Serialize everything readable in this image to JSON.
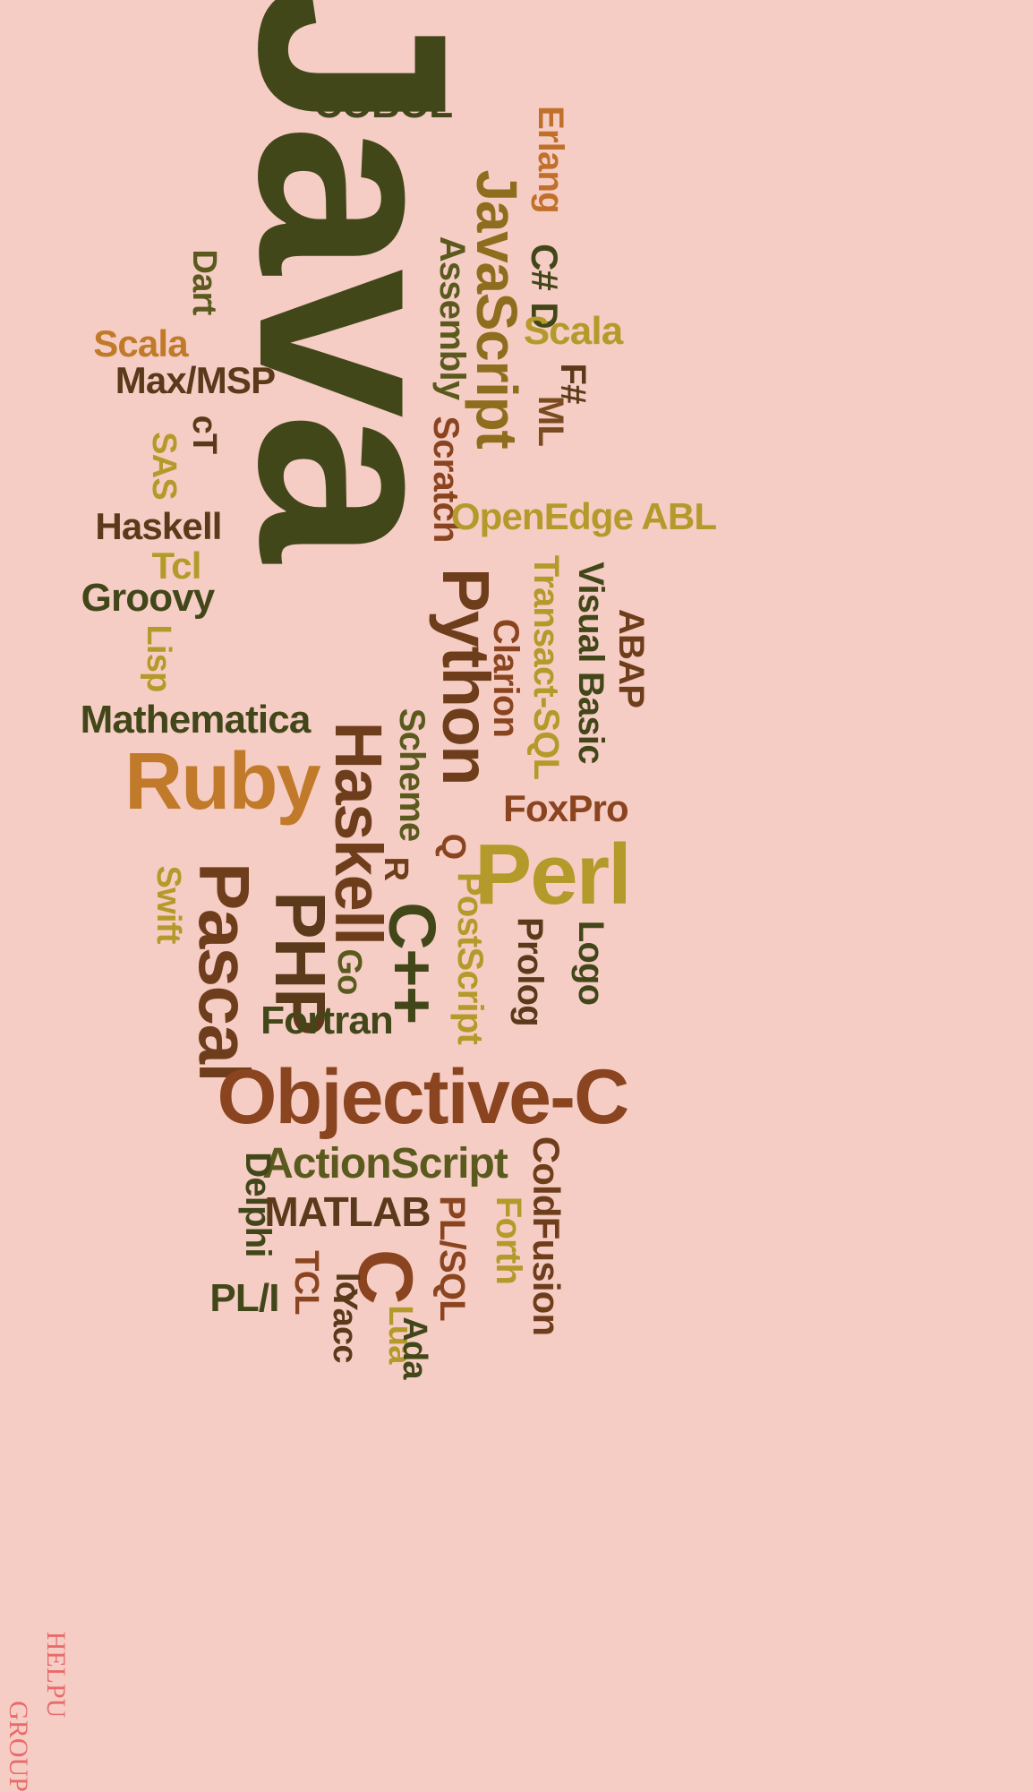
{
  "palette": {
    "background": "#f6cdc4",
    "olive_dark": "#424719",
    "olive": "#5a5a1e",
    "brown": "#6e3e1c",
    "rust": "#8a4520",
    "ochre": "#c07a2a",
    "mustard": "#b49a2a",
    "watermark": "#e86a6a"
  },
  "words": [
    {
      "text": "Java",
      "size": 300,
      "rot": 90,
      "color": "#424719"
    },
    {
      "text": "COBOL",
      "size": 44,
      "rot": 0,
      "color": "#424719"
    },
    {
      "text": "JavaScript",
      "size": 64,
      "rot": 90,
      "color": "#8f6d1e"
    },
    {
      "text": "Erlang",
      "size": 40,
      "rot": 90,
      "color": "#c0702a"
    },
    {
      "text": "C#",
      "size": 42,
      "rot": 90,
      "color": "#424719"
    },
    {
      "text": "D",
      "size": 42,
      "rot": 90,
      "color": "#424719"
    },
    {
      "text": "Scala",
      "size": 44,
      "rot": 0,
      "color": "#b49a2a"
    },
    {
      "text": "F#",
      "size": 40,
      "rot": 90,
      "color": "#5a3a1a"
    },
    {
      "text": "ML",
      "size": 40,
      "rot": 90,
      "color": "#7a4a20"
    },
    {
      "text": "Assembly",
      "size": 40,
      "rot": 90,
      "color": "#5a5a1e"
    },
    {
      "text": "Scratch",
      "size": 40,
      "rot": 90,
      "color": "#8a4520"
    },
    {
      "text": "Dart",
      "size": 38,
      "rot": 90,
      "color": "#5a5a1e"
    },
    {
      "text": "Scala",
      "size": 42,
      "rot": 0,
      "color": "#c07a2a"
    },
    {
      "text": "Max/MSP",
      "size": 42,
      "rot": 0,
      "color": "#5a3a1a"
    },
    {
      "text": "cT",
      "size": 38,
      "rot": 90,
      "color": "#5a3a1a"
    },
    {
      "text": "SAS",
      "size": 38,
      "rot": 90,
      "color": "#b49a2a"
    },
    {
      "text": "OpenEdge ABL",
      "size": 42,
      "rot": 0,
      "color": "#b49a2a"
    },
    {
      "text": "Haskell",
      "size": 42,
      "rot": 0,
      "color": "#5a3a1a"
    },
    {
      "text": "Tcl",
      "size": 42,
      "rot": 0,
      "color": "#b49a2a"
    },
    {
      "text": "Groovy",
      "size": 44,
      "rot": 0,
      "color": "#424719"
    },
    {
      "text": "Lisp",
      "size": 38,
      "rot": 90,
      "color": "#b49a2a"
    },
    {
      "text": "Python",
      "size": 74,
      "rot": 90,
      "color": "#6e3e1c"
    },
    {
      "text": "Transact-SQL",
      "size": 40,
      "rot": 90,
      "color": "#b49a2a"
    },
    {
      "text": "Visual Basic",
      "size": 40,
      "rot": 90,
      "color": "#424719"
    },
    {
      "text": "ABAP",
      "size": 40,
      "rot": 90,
      "color": "#6e3e1c"
    },
    {
      "text": "Clarion",
      "size": 40,
      "rot": 90,
      "color": "#8a4520"
    },
    {
      "text": "Mathematica",
      "size": 44,
      "rot": 0,
      "color": "#424719"
    },
    {
      "text": "Haskell",
      "size": 74,
      "rot": 90,
      "color": "#6e3e1c"
    },
    {
      "text": "Scheme",
      "size": 40,
      "rot": 90,
      "color": "#5a5a1e"
    },
    {
      "text": "Ruby",
      "size": 90,
      "rot": 0,
      "color": "#c07a2a"
    },
    {
      "text": "FoxPro",
      "size": 42,
      "rot": 0,
      "color": "#8a4520"
    },
    {
      "text": "Q",
      "size": 38,
      "rot": 90,
      "color": "#8a4520"
    },
    {
      "text": "R",
      "size": 38,
      "rot": 90,
      "color": "#6e3e1c"
    },
    {
      "text": "Perl",
      "size": 96,
      "rot": 0,
      "color": "#b49a2a"
    },
    {
      "text": "Swift",
      "size": 38,
      "rot": 90,
      "color": "#b49a2a"
    },
    {
      "text": "Pascal",
      "size": 80,
      "rot": 90,
      "color": "#6e3e1c"
    },
    {
      "text": "PHP",
      "size": 80,
      "rot": 90,
      "color": "#5a3a1a"
    },
    {
      "text": "C++",
      "size": 74,
      "rot": 90,
      "color": "#424719"
    },
    {
      "text": "PostScript",
      "size": 40,
      "rot": 90,
      "color": "#b49a2a"
    },
    {
      "text": "Prolog",
      "size": 40,
      "rot": 90,
      "color": "#5a3a1a"
    },
    {
      "text": "Logo",
      "size": 40,
      "rot": 90,
      "color": "#424719"
    },
    {
      "text": "Go",
      "size": 38,
      "rot": 90,
      "color": "#5a5a1e"
    },
    {
      "text": "Fortran",
      "size": 44,
      "rot": 0,
      "color": "#424719"
    },
    {
      "text": "Objective-C",
      "size": 86,
      "rot": 0,
      "color": "#8a4520"
    },
    {
      "text": "ActionScript",
      "size": 48,
      "rot": 0,
      "color": "#5a5a1e"
    },
    {
      "text": "ColdFusion",
      "size": 42,
      "rot": 90,
      "color": "#6e3e1c"
    },
    {
      "text": "Delphi",
      "size": 40,
      "rot": 90,
      "color": "#424719"
    },
    {
      "text": "MATLAB",
      "size": 46,
      "rot": 0,
      "color": "#5a3a1a"
    },
    {
      "text": "PL/SQL",
      "size": 40,
      "rot": 90,
      "color": "#8a4520"
    },
    {
      "text": "Forth",
      "size": 40,
      "rot": 90,
      "color": "#b49a2a"
    },
    {
      "text": "C",
      "size": 86,
      "rot": 90,
      "color": "#8a4520"
    },
    {
      "text": "Io",
      "size": 38,
      "rot": 90,
      "color": "#5a3a1a"
    },
    {
      "text": "TCL",
      "size": 38,
      "rot": 90,
      "color": "#8a4520"
    },
    {
      "text": "Yacc",
      "size": 38,
      "rot": 90,
      "color": "#5a3a1a"
    },
    {
      "text": "Lua",
      "size": 38,
      "rot": 90,
      "color": "#b49a2a"
    },
    {
      "text": "Ada",
      "size": 38,
      "rot": 90,
      "color": "#424719"
    },
    {
      "text": "PL/I",
      "size": 44,
      "rot": 0,
      "color": "#424719"
    }
  ],
  "watermark": {
    "line1": "HELPU",
    "line2": "GROUP",
    "color": "#e86a6a"
  }
}
